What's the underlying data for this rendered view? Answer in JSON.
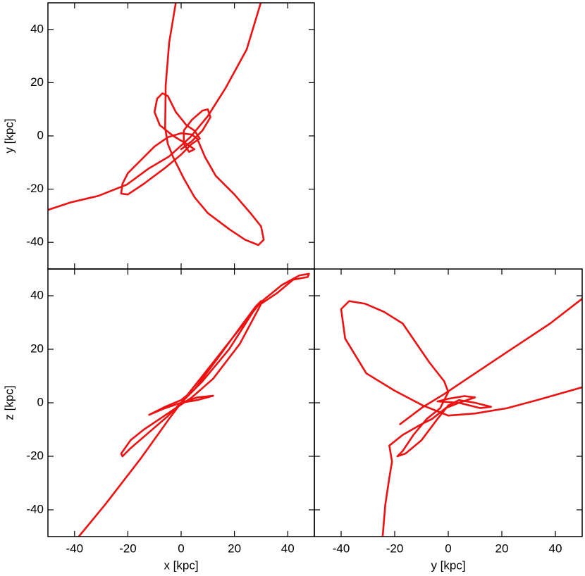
{
  "chart_data": [
    {
      "type": "line",
      "ylabel": "y [kpc]",
      "color": "#ee1111",
      "xlim": [
        -50,
        50
      ],
      "ylim": [
        -50,
        50
      ],
      "xticks": [
        -40,
        -20,
        0,
        20,
        40
      ],
      "yticks": [
        -40,
        -20,
        0,
        20,
        40
      ],
      "xtick_labels": false,
      "ytick_labels": true,
      "x": [
        -2,
        -4.5,
        -5.8,
        -6,
        -5,
        -3,
        1,
        5,
        10,
        18,
        24,
        29,
        31,
        30,
        26,
        20,
        13,
        9,
        6,
        4,
        0,
        -5,
        -10,
        -15,
        -20,
        -22,
        -22.5,
        -20,
        -14,
        -6,
        0,
        4,
        7,
        5,
        2,
        -2,
        -5,
        -7,
        -9,
        -10,
        -8,
        -3,
        2,
        5,
        3,
        1,
        1,
        4,
        8,
        10,
        11,
        8,
        4,
        0,
        null,
        -50,
        -41.5,
        -31,
        -20.4,
        -12.4,
        -4.5,
        3.4,
        10,
        16.7,
        24.6,
        29.9
      ],
      "values": [
        50,
        35,
        19,
        3,
        -3,
        -8,
        -16,
        -23,
        -29,
        -35,
        -39,
        -41,
        -39,
        -34,
        -29,
        -22,
        -15,
        -8,
        -1,
        0.5,
        1,
        -0.5,
        -4,
        -9,
        -14,
        -18,
        -21.7,
        -22,
        -18,
        -12,
        -7,
        -3,
        -1,
        2,
        4,
        9,
        15,
        16,
        14,
        9,
        4,
        0,
        -3,
        -5,
        -6,
        -3,
        2,
        6,
        9.5,
        10,
        7,
        2,
        -2,
        -5,
        null,
        -27.8,
        -25,
        -22.5,
        -18.3,
        -12.4,
        -7.7,
        -0.5,
        7.4,
        18,
        32.5,
        50
      ]
    },
    {
      "type": "line",
      "xlabel": "x [kpc]",
      "ylabel": "z [kpc]",
      "color": "#ee1111",
      "xlim": [
        -50,
        50
      ],
      "ylim": [
        -50,
        50
      ],
      "xticks": [
        -40,
        -20,
        0,
        20,
        40
      ],
      "yticks": [
        -40,
        -20,
        0,
        20,
        40
      ],
      "xtick_labels": true,
      "ytick_labels": true,
      "x": [
        -38.4,
        -28.3,
        -15,
        -4.5,
        0,
        11,
        19.3,
        29.9,
        37.8,
        44.4,
        48,
        47.5,
        42,
        36,
        30,
        29,
        22,
        12,
        4,
        -2,
        -8,
        -14,
        -19,
        -22.5,
        -22,
        -19,
        -12,
        -5,
        0,
        6,
        12,
        6,
        0,
        -6,
        -12,
        -6,
        0,
        5,
        14,
        22,
        28,
        30,
        27,
        18,
        8,
        1,
        -4
      ],
      "values": [
        -50,
        -37.8,
        -20.6,
        -6,
        0,
        13.8,
        24.3,
        37.6,
        44,
        47.6,
        48.2,
        47,
        46,
        41,
        37,
        35,
        22,
        9,
        2,
        -2,
        -6,
        -10,
        -14,
        -19,
        -20,
        -17,
        -11,
        -5,
        0,
        2,
        2.6,
        1,
        0,
        -2,
        -4.5,
        -1.5,
        1,
        5,
        17,
        28,
        36,
        38,
        34,
        20,
        8,
        1,
        -4
      ]
    },
    {
      "type": "line",
      "xlabel": "y [kpc]",
      "color": "#ee1111",
      "xlim": [
        -50,
        50
      ],
      "ylim": [
        -50,
        50
      ],
      "xticks": [
        -40,
        -20,
        0,
        20,
        40
      ],
      "yticks": [
        -40,
        -20,
        0,
        20,
        40
      ],
      "xtick_labels": true,
      "ytick_labels": false,
      "x": [
        50,
        35,
        22,
        10,
        0,
        -9.5,
        -20,
        -30.6,
        -38.5,
        -40,
        -37,
        -31,
        -24,
        -17,
        -7,
        -1.5,
        0,
        -3,
        -8,
        -13,
        -17,
        -19,
        -16,
        -10,
        -4,
        0,
        4,
        10,
        16,
        12,
        4,
        -4,
        0,
        6,
        10,
        4,
        -1,
        -6,
        -10,
        -17,
        -22,
        -21,
        -22,
        -23.5,
        -24.5,
        null,
        -18,
        -9.5,
        -1.6,
        6.3,
        22,
        38,
        50
      ],
      "values": [
        5.8,
        1.5,
        -2,
        -4,
        -4.8,
        -1,
        4.5,
        11,
        24,
        35,
        38,
        37,
        34,
        29.6,
        15,
        8,
        4,
        -2,
        -6,
        -12,
        -18,
        -20,
        -19,
        -14,
        -6,
        -1,
        1,
        0,
        -1.5,
        -2,
        0,
        0.5,
        1.5,
        2.5,
        2,
        0,
        -2,
        -6,
        -8,
        -12,
        -16,
        -22,
        -28,
        -38,
        -50,
        null,
        -8,
        -1.6,
        3.2,
        8.5,
        19,
        29.6,
        38.9
      ]
    }
  ]
}
